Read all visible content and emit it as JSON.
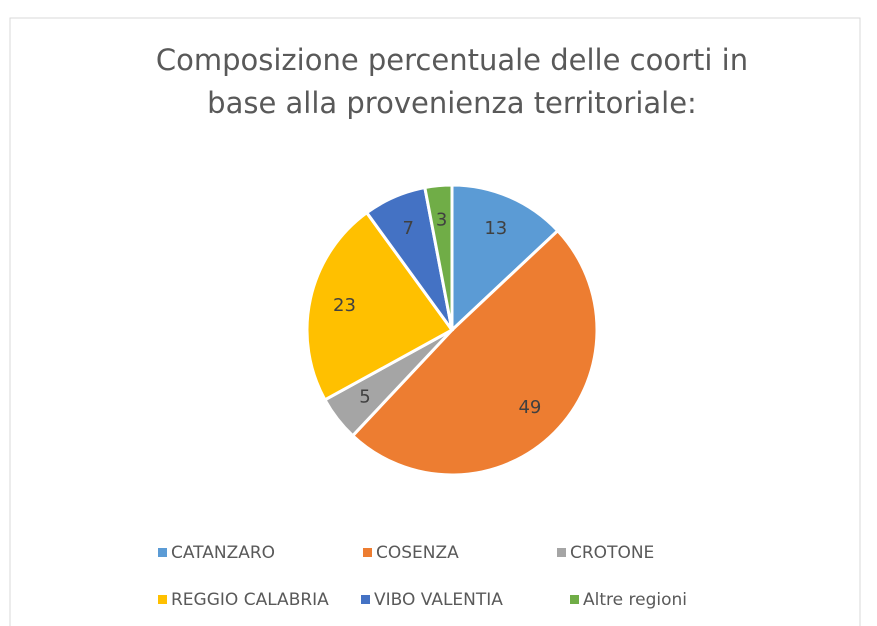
{
  "chart_data": {
    "type": "pie",
    "title": "Composizione percentuale delle coorti in base alla provenienza territoriale:",
    "categories": [
      "CATANZARO",
      "COSENZA",
      "CROTONE",
      "REGGIO CALABRIA",
      "VIBO VALENTIA",
      "Altre regioni"
    ],
    "values": [
      13,
      49,
      5,
      23,
      7,
      3
    ],
    "colors": [
      "#5b9bd5",
      "#ed7d31",
      "#a5a5a5",
      "#ffc000",
      "#4472c4",
      "#70ad47"
    ],
    "legend": "bottom"
  }
}
